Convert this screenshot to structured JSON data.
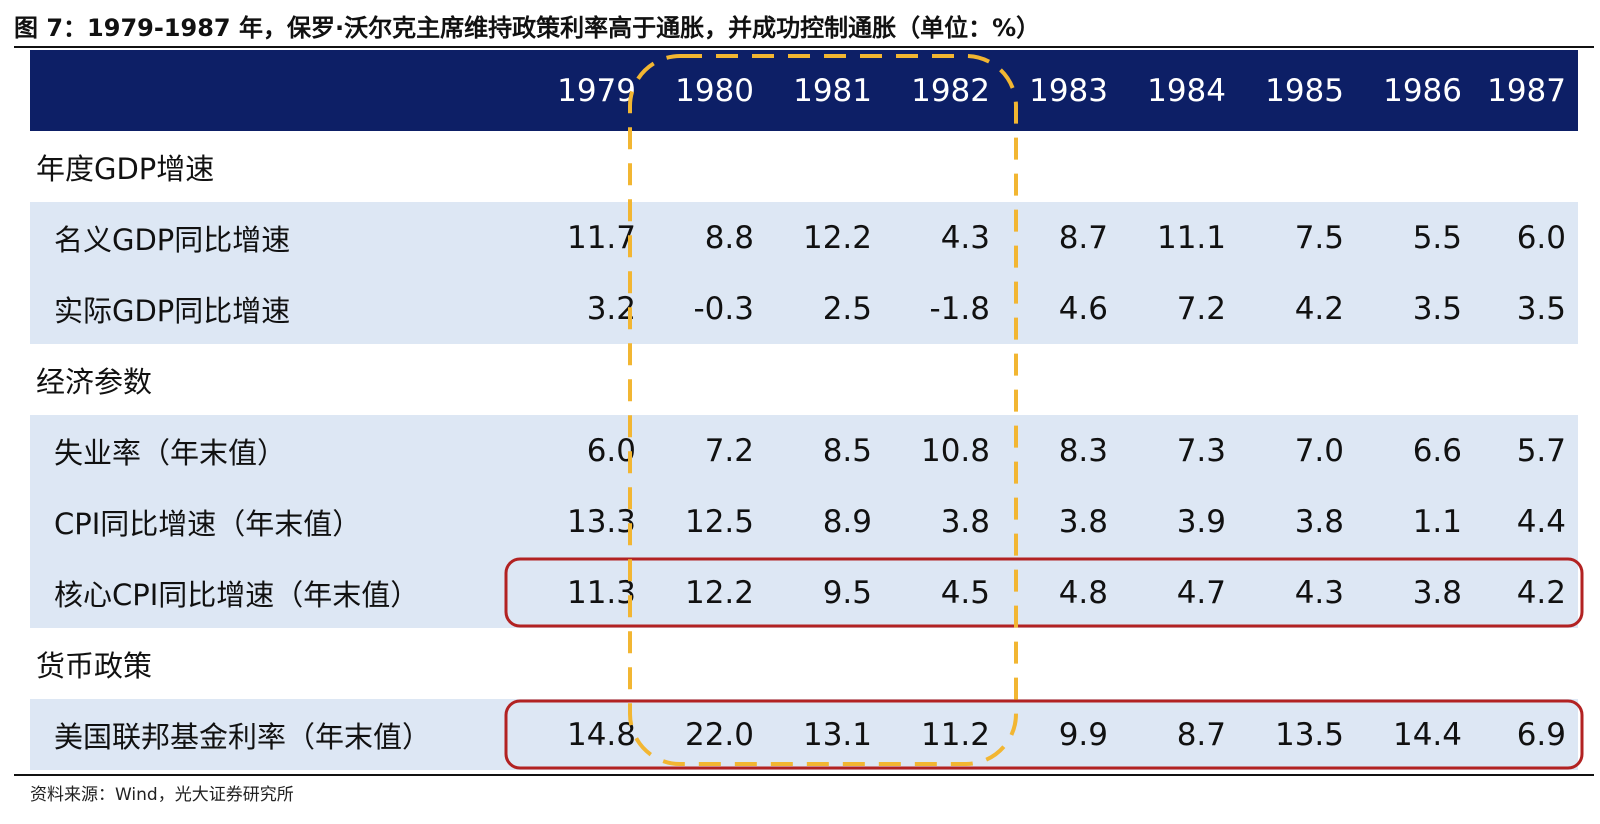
{
  "figure": {
    "title": "图 7：1979-1987 年，保罗·沃尔克主席维持政策利率高于通胀，并成功控制通胀（单位：%）",
    "source": "资料来源：Wind，光大证券研究所"
  },
  "colors": {
    "header_bg": "#0d1f66",
    "header_text": "#ffffff",
    "row_shade": "#dde7f4",
    "highlight_box": "#b22222",
    "dashed_box": "#f2b632"
  },
  "chart_data": {
    "type": "table",
    "columns": [
      "1979",
      "1980",
      "1981",
      "1982",
      "1983",
      "1984",
      "1985",
      "1986",
      "1987"
    ],
    "sections": [
      {
        "name": "年度GDP增速",
        "rows": [
          {
            "label": "名义GDP同比增速",
            "values": [
              "11.7",
              "8.8",
              "12.2",
              "4.3",
              "8.7",
              "11.1",
              "7.5",
              "5.5",
              "6.0"
            ]
          },
          {
            "label": "实际GDP同比增速",
            "values": [
              "3.2",
              "-0.3",
              "2.5",
              "-1.8",
              "4.6",
              "7.2",
              "4.2",
              "3.5",
              "3.5"
            ]
          }
        ]
      },
      {
        "name": "经济参数",
        "rows": [
          {
            "label": "失业率（年末值）",
            "values": [
              "6.0",
              "7.2",
              "8.5",
              "10.8",
              "8.3",
              "7.3",
              "7.0",
              "6.6",
              "5.7"
            ]
          },
          {
            "label": "CPI同比增速（年末值）",
            "values": [
              "13.3",
              "12.5",
              "8.9",
              "3.8",
              "3.8",
              "3.9",
              "3.8",
              "1.1",
              "4.4"
            ]
          },
          {
            "label": "核心CPI同比增速（年末值）",
            "values": [
              "11.3",
              "12.2",
              "9.5",
              "4.5",
              "4.8",
              "4.7",
              "4.3",
              "3.8",
              "4.2"
            ]
          }
        ]
      },
      {
        "name": "货币政策",
        "rows": [
          {
            "label": "美国联邦基金利率（年末值）",
            "values": [
              "14.8",
              "22.0",
              "13.1",
              "11.2",
              "9.9",
              "8.7",
              "13.5",
              "14.4",
              "6.9"
            ]
          }
        ]
      }
    ],
    "highlights": {
      "dashed_columns": [
        "1980",
        "1981",
        "1982"
      ],
      "boxed_rows": [
        "核心CPI同比增速（年末值）",
        "美国联邦基金利率（年末值）"
      ]
    }
  }
}
